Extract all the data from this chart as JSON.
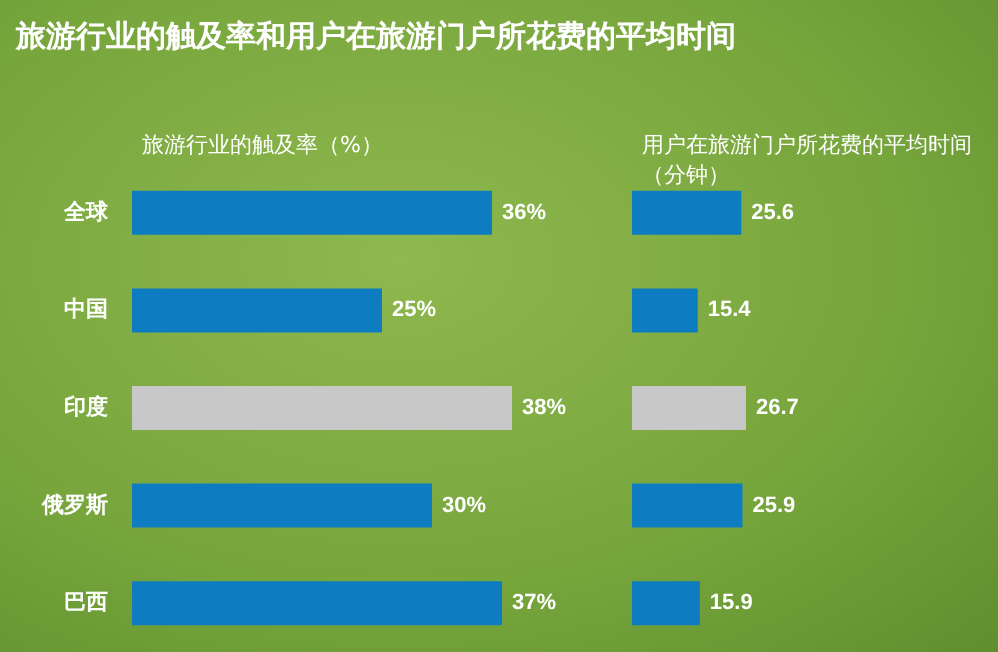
{
  "chart_data": [
    {
      "type": "bar",
      "orientation": "horizontal",
      "title": "旅游行业的触及率和用户在旅游门户所花费的平均时间",
      "subtitle": "旅游行业的触及率（%）",
      "categories": [
        "全球",
        "中国",
        "印度",
        "俄罗斯",
        "巴西"
      ],
      "values": [
        36,
        25,
        38,
        30,
        37
      ],
      "value_labels": [
        "36%",
        "25%",
        "38%",
        "30%",
        "37%"
      ],
      "colors": [
        "#0e7cc1",
        "#0e7cc1",
        "#c8c8c8",
        "#0e7cc1",
        "#0e7cc1"
      ],
      "tick_labels": "y",
      "grid": false
    },
    {
      "type": "bar",
      "orientation": "horizontal",
      "subtitle": "用户在旅游门户所花费的平均时间（分钟）",
      "categories": [
        null,
        null,
        null,
        null,
        null
      ],
      "values": [
        25.6,
        15.4,
        26.7,
        25.9,
        15.9
      ],
      "colors": [
        "#0e7cc1",
        "#0e7cc1",
        "#c8c8c8",
        "#0e7cc1",
        "#0e7cc1"
      ],
      "tick_labels": false,
      "data_labels": true,
      "grid": false
    }
  ]
}
